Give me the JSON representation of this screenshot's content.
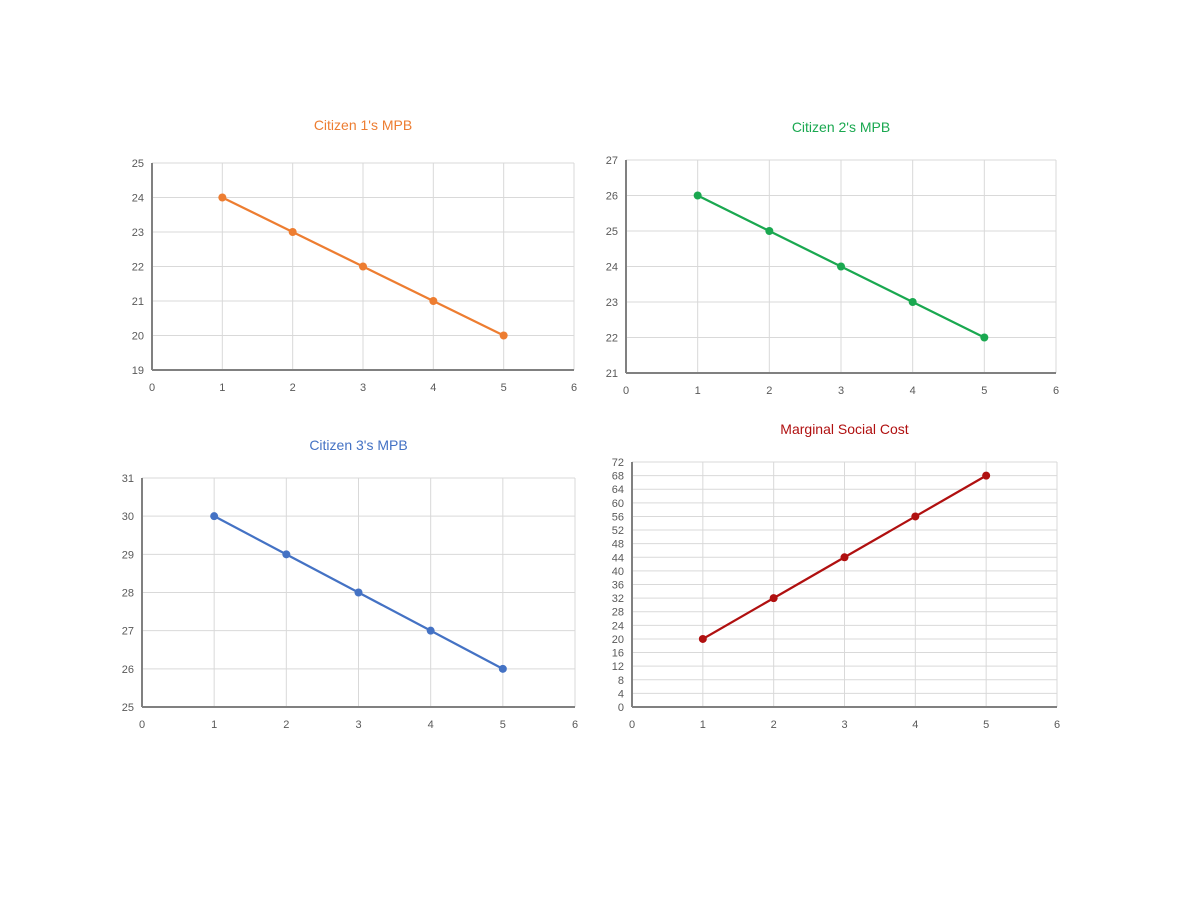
{
  "chart_data": [
    {
      "type": "line",
      "title": "Citizen 1's MPB",
      "color": "#ed7d31",
      "x": [
        1,
        2,
        3,
        4,
        5
      ],
      "values": [
        24,
        23,
        22,
        21,
        20
      ],
      "xlim": [
        0,
        6
      ],
      "ylim": [
        19,
        25
      ],
      "xticks": [
        0,
        1,
        2,
        3,
        4,
        5,
        6
      ],
      "yticks": [
        19,
        20,
        21,
        22,
        23,
        24,
        25
      ],
      "xlabel": "",
      "ylabel": "",
      "grid": true,
      "markers": true
    },
    {
      "type": "line",
      "title": "Citizen 2's MPB",
      "color": "#1aa850",
      "x": [
        1,
        2,
        3,
        4,
        5
      ],
      "values": [
        26,
        25,
        24,
        23,
        22
      ],
      "xlim": [
        0,
        6
      ],
      "ylim": [
        21,
        27
      ],
      "xticks": [
        0,
        1,
        2,
        3,
        4,
        5,
        6
      ],
      "yticks": [
        21,
        22,
        23,
        24,
        25,
        26,
        27
      ],
      "xlabel": "",
      "ylabel": "",
      "grid": true,
      "markers": true
    },
    {
      "type": "line",
      "title": "Citizen 3's MPB",
      "color": "#4472c4",
      "x": [
        1,
        2,
        3,
        4,
        5
      ],
      "values": [
        30,
        29,
        28,
        27,
        26
      ],
      "xlim": [
        0,
        6
      ],
      "ylim": [
        25,
        31
      ],
      "xticks": [
        0,
        1,
        2,
        3,
        4,
        5,
        6
      ],
      "yticks": [
        25,
        26,
        27,
        28,
        29,
        30,
        31
      ],
      "xlabel": "",
      "ylabel": "",
      "grid": true,
      "markers": true
    },
    {
      "type": "line",
      "title": "Marginal Social Cost",
      "color": "#b01010",
      "x": [
        1,
        2,
        3,
        4,
        5
      ],
      "values": [
        20,
        32,
        44,
        56,
        68
      ],
      "xlim": [
        0,
        6
      ],
      "ylim": [
        0,
        72
      ],
      "xticks": [
        0,
        1,
        2,
        3,
        4,
        5,
        6
      ],
      "yticks": [
        0,
        4,
        8,
        12,
        16,
        20,
        24,
        28,
        32,
        36,
        40,
        44,
        48,
        52,
        56,
        60,
        64,
        68,
        72
      ],
      "xlabel": "",
      "ylabel": "",
      "grid": true,
      "markers": true
    }
  ]
}
